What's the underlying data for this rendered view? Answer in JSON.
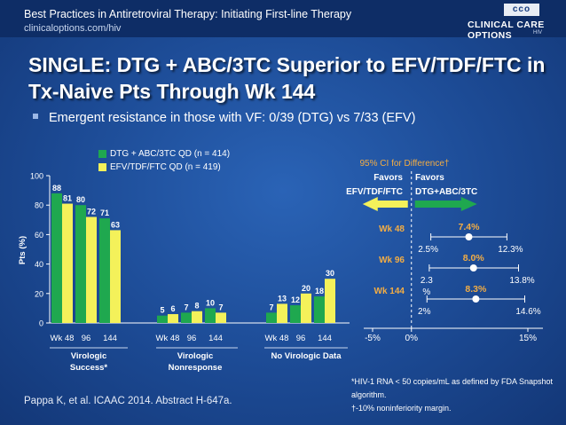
{
  "header": {
    "series_title": "Best Practices in Antiretroviral Therapy: Initiating First-line Therapy",
    "site": "clinicaloptions.com/hiv",
    "logo_abbrev": "cco",
    "logo_name": "CLINICAL CARE OPTIONS",
    "logo_sub": "HIV"
  },
  "title": "SINGLE: DTG + ABC/3TC Superior to EFV/TDF/FTC in Tx-Naive Pts Through Wk 144",
  "bullet": "Emergent resistance in those with VF: 0/39 (DTG) vs 7/33 (EFV)",
  "colors": {
    "dtg": "#1fa84f",
    "efv": "#f4f15a",
    "forest": "#f3ad44",
    "favors_efv": "#f4f15a",
    "favors_dtg": "#1fa84f"
  },
  "chart_data": [
    {
      "type": "bar",
      "ylabel": "Pts (%)",
      "ylim": [
        0,
        100
      ],
      "yticks": [
        "0",
        "20",
        "40",
        "60",
        "80",
        "100"
      ],
      "series": [
        {
          "name": "DTG + ABC/3TC QD (n = 414)"
        },
        {
          "name": "EFV/TDF/FTC QD (n = 419)"
        }
      ],
      "groups": [
        {
          "label": "Virologic Success*",
          "label_lines": [
            "Virologic",
            "Success*"
          ],
          "timepoints": [
            "Wk 48",
            "96",
            "144"
          ],
          "dtg": [
            88,
            80,
            71
          ],
          "efv": [
            81,
            72,
            63
          ]
        },
        {
          "label": "Virologic Nonresponse",
          "label_lines": [
            "Virologic",
            "Nonresponse"
          ],
          "timepoints": [
            "Wk 48",
            "96",
            "144"
          ],
          "dtg": [
            5,
            7,
            10
          ],
          "efv": [
            6,
            8,
            7
          ]
        },
        {
          "label": "No Virologic Data",
          "label_lines": [
            "No Virologic Data"
          ],
          "timepoints": [
            "Wk 48",
            "96",
            "144"
          ],
          "dtg": [
            7,
            12,
            18
          ],
          "efv": [
            13,
            20,
            30
          ]
        }
      ]
    },
    {
      "type": "forest",
      "title": "95% CI for Difference†",
      "favors_left_line1": "Favors",
      "favors_left_line2": "EFV/TDF/FTC",
      "favors_right_line1": "Favors",
      "favors_right_line2": "DTG+ABC/3TC",
      "xlim": [
        -5,
        15
      ],
      "noninferiority_margin": -10,
      "xticks": [
        {
          "value": -5,
          "label": "-5%"
        },
        {
          "value": 0,
          "label": "0%"
        },
        {
          "value": 15,
          "label": "15%"
        }
      ],
      "rows": [
        {
          "label": "Wk 48",
          "estimate": 7.4,
          "estimate_label": "7.4%",
          "lower": 2.5,
          "upper": 12.3,
          "lower_label": "2.5%",
          "upper_label": "12.3%"
        },
        {
          "label": "Wk 96",
          "estimate": 8.0,
          "estimate_label": "8.0%",
          "lower": 2.3,
          "upper": 13.8,
          "lower_label": "2.3",
          "lower_label2": "%",
          "upper_label": "13.8%"
        },
        {
          "label": "Wk 144",
          "estimate": 8.3,
          "estimate_label": "8.3%",
          "lower": 2.0,
          "upper": 14.6,
          "lower_label": "2%",
          "upper_label": "14.6%"
        }
      ]
    }
  ],
  "footnotes": [
    "*HIV-1 RNA < 50 copies/mL as defined by FDA Snapshot algorithm.",
    "†-10% noninferiority margin."
  ],
  "citation": "Pappa K, et al. ICAAC 2014. Abstract H-647a."
}
